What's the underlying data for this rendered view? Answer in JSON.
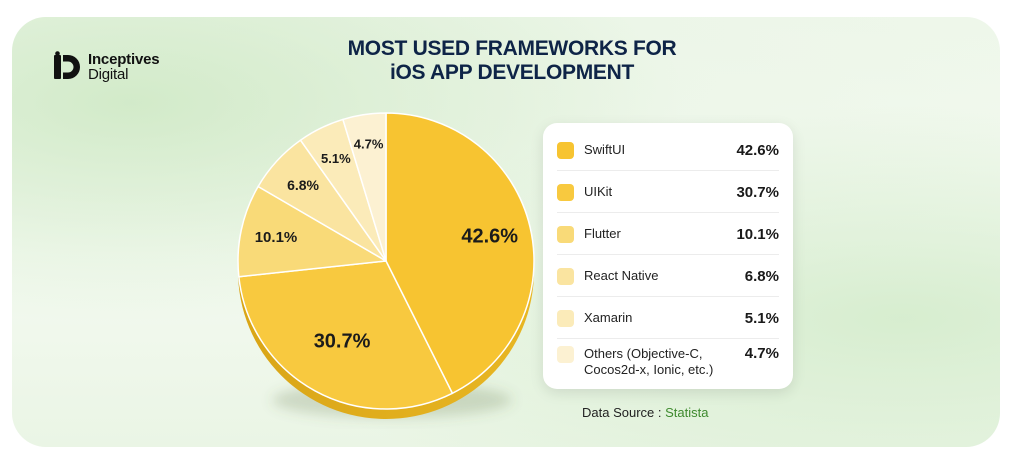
{
  "brand": {
    "line1": "Inceptives",
    "line2": "Digital"
  },
  "title": {
    "line1": "MOST USED FRAMEWORKS FOR",
    "line2": "iOS APP DEVELOPMENT"
  },
  "source": {
    "label": "Data Source :",
    "value": "Statista"
  },
  "colors": {
    "title": "#0e2447",
    "source_link": "#3e8a2e",
    "slices": [
      "#f7c431",
      "#f8c93f",
      "#f9da78",
      "#fae4a0",
      "#fbebb9",
      "#fcf1d2"
    ]
  },
  "chart_data": {
    "type": "pie",
    "title": "MOST USED FRAMEWORKS FOR iOS APP DEVELOPMENT",
    "legend_position": "right",
    "slices": [
      {
        "label": "SwiftUI",
        "value": 42.6,
        "display": "42.6%"
      },
      {
        "label": "UIKit",
        "value": 30.7,
        "display": "30.7%"
      },
      {
        "label": "Flutter",
        "value": 10.1,
        "display": "10.1%"
      },
      {
        "label": "React Native",
        "value": 6.8,
        "display": "6.8%"
      },
      {
        "label": "Xamarin",
        "value": 5.1,
        "display": "5.1%"
      },
      {
        "label": "Others (Objective-C, Cocos2d-x, Ionic, etc.)",
        "value": 4.7,
        "display": "4.7%"
      }
    ]
  }
}
